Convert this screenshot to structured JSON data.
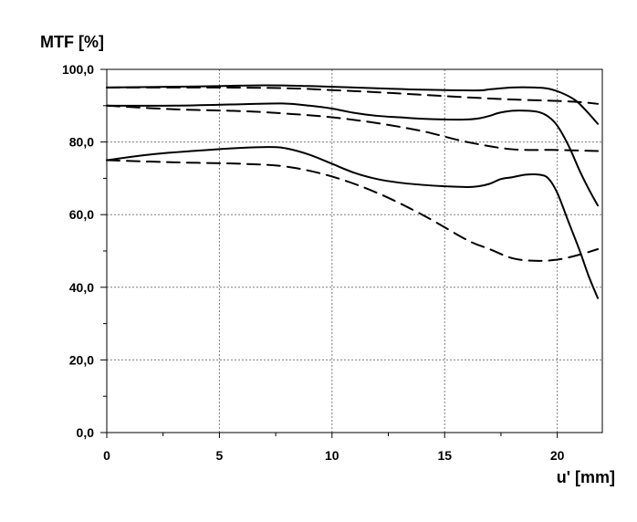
{
  "chart_data": {
    "type": "line",
    "title": "",
    "ylabel": "MTF [%]",
    "xlabel": "u' [mm]",
    "xlim": [
      0,
      22
    ],
    "ylim": [
      0,
      100
    ],
    "x_ticks": [
      0,
      5,
      10,
      15,
      20
    ],
    "x_tick_labels": [
      "0",
      "5",
      "10",
      "15",
      "20"
    ],
    "y_ticks": [
      0,
      20,
      40,
      60,
      80,
      100
    ],
    "y_tick_labels": [
      "0,0",
      "20,0",
      "40,0",
      "60,0",
      "80,0",
      "100,0"
    ],
    "grid": true,
    "legend": "none",
    "series": [
      {
        "style": "solid",
        "x": [
          0,
          4,
          7,
          9,
          12,
          14,
          16.4,
          17,
          18,
          19,
          19.6,
          20.2,
          20.8,
          21.3,
          21.8
        ],
        "y": [
          95,
          95.3,
          95.6,
          95.4,
          94.8,
          94.4,
          94.2,
          94.5,
          95,
          95,
          94.7,
          93.5,
          91.5,
          88.5,
          85
        ]
      },
      {
        "style": "dashed",
        "x": [
          0,
          5,
          8,
          10,
          12,
          14,
          16,
          18,
          20,
          21,
          21.8
        ],
        "y": [
          95,
          95,
          94.8,
          94.3,
          93.7,
          93,
          92.3,
          91.7,
          91.3,
          91,
          90.5
        ]
      },
      {
        "style": "solid",
        "x": [
          0,
          3,
          6,
          7.8,
          9,
          10,
          11,
          12,
          13,
          14,
          15,
          16,
          16.6,
          17,
          17.4,
          18,
          18.7,
          19.2,
          19.6,
          20,
          20.5,
          21,
          21.4,
          21.8
        ],
        "y": [
          90,
          90,
          90.4,
          90.6,
          90,
          89.2,
          88,
          87.2,
          86.8,
          86.4,
          86.2,
          86.2,
          86.6,
          87.2,
          88,
          88.6,
          88.6,
          88.2,
          87,
          84.5,
          79,
          72,
          67,
          62.5
        ]
      },
      {
        "style": "dashed",
        "x": [
          0,
          3,
          6,
          8,
          10,
          12,
          14,
          16,
          18,
          20,
          21.8
        ],
        "y": [
          90,
          89,
          88.5,
          87.8,
          86.8,
          85.2,
          83,
          80,
          78,
          77.8,
          77.5
        ]
      },
      {
        "style": "solid",
        "x": [
          0,
          2,
          4,
          6,
          7.3,
          8,
          9,
          10,
          11,
          12,
          13,
          14,
          15,
          16,
          16.5,
          17,
          17.5,
          18,
          18.6,
          19.2,
          19.6,
          20,
          20.5,
          21,
          21.4,
          21.8
        ],
        "y": [
          75,
          76.6,
          77.6,
          78.4,
          78.6,
          78.2,
          76.5,
          74,
          71.5,
          69.8,
          68.8,
          68.2,
          67.8,
          67.6,
          67.8,
          68.5,
          69.8,
          70.3,
          71,
          71,
          70,
          66,
          58,
          50,
          43,
          37
        ]
      },
      {
        "style": "dashed",
        "x": [
          0,
          3,
          6,
          8,
          10,
          12,
          14,
          16,
          17,
          18,
          19,
          20,
          21,
          21.8
        ],
        "y": [
          75,
          74.4,
          74,
          73.2,
          70.5,
          66,
          60,
          53,
          50.5,
          48,
          47.3,
          47.6,
          49,
          50.5
        ]
      }
    ]
  }
}
